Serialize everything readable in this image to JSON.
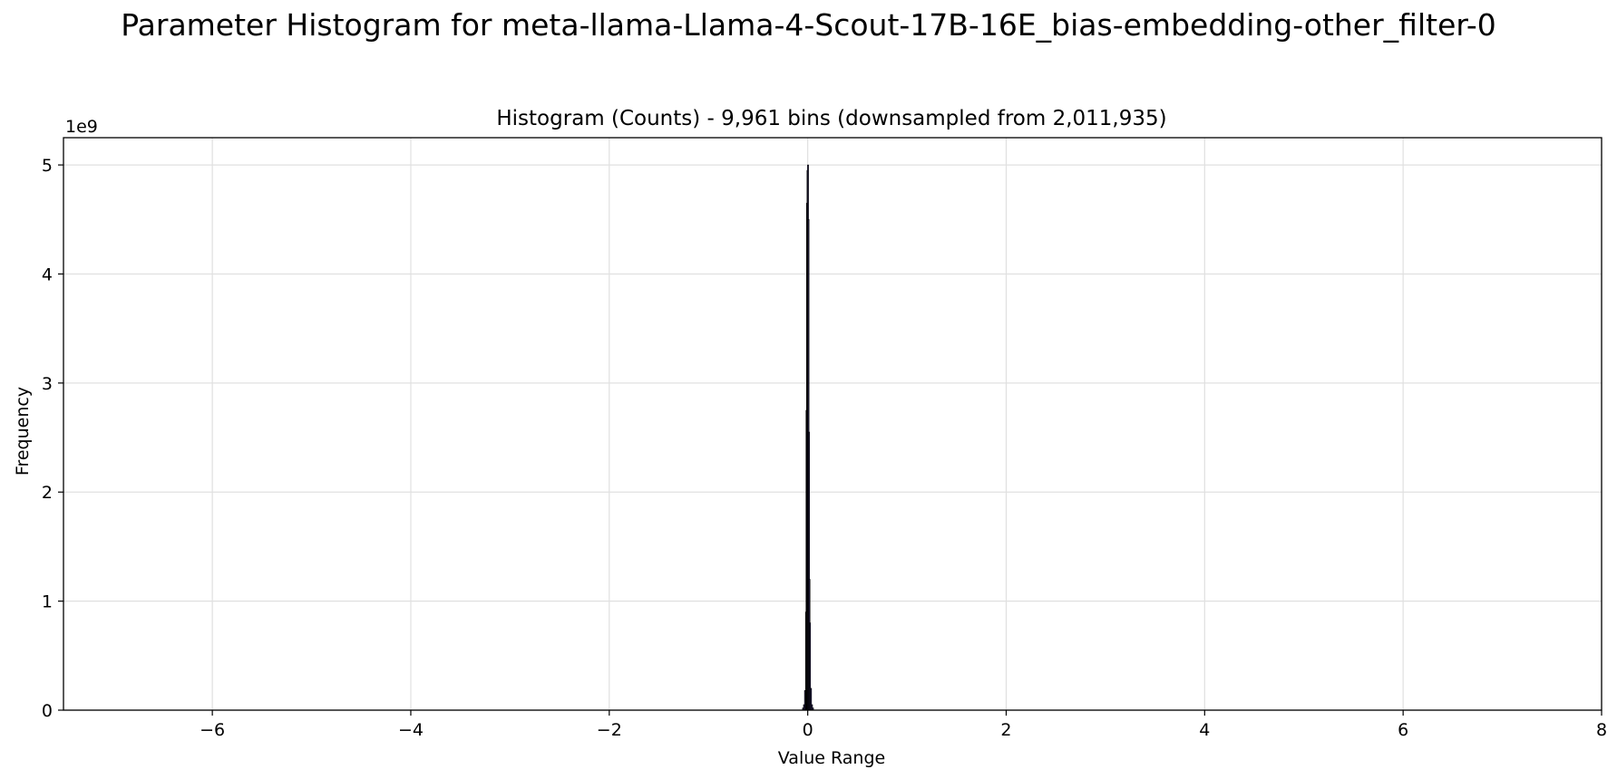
{
  "figure": {
    "suptitle": "Parameter Histogram for meta-llama-Llama-4-Scout-17B-16E_bias-embedding-other_filter-0"
  },
  "chart_data": {
    "type": "bar",
    "title": "Histogram (Counts) - 9,961 bins (downsampled from 2,011,935)",
    "xlabel": "Value Range",
    "ylabel": "Frequency",
    "y_offset_label": "1e9",
    "xlim": [
      -7.5,
      8.0
    ],
    "ylim": [
      0,
      5.25
    ],
    "y_unit": 1000000000,
    "x_ticks": [
      -6,
      -4,
      -2,
      0,
      2,
      4,
      6,
      8
    ],
    "x_tick_labels": [
      "−6",
      "−4",
      "−2",
      "0",
      "2",
      "4",
      "6",
      "8"
    ],
    "y_ticks": [
      0,
      1,
      2,
      3,
      4,
      5
    ],
    "y_tick_labels": [
      "0",
      "1",
      "2",
      "3",
      "4",
      "5"
    ],
    "grid": true,
    "bar_color": "#2a2450",
    "edge_color": "#000000",
    "bins": [
      {
        "x": -0.05,
        "value": 0.02
      },
      {
        "x": -0.04,
        "value": 0.05
      },
      {
        "x": -0.03,
        "value": 0.18
      },
      {
        "x": -0.02,
        "value": 0.9
      },
      {
        "x": -0.015,
        "value": 2.75
      },
      {
        "x": -0.01,
        "value": 4.65
      },
      {
        "x": -0.005,
        "value": 4.95
      },
      {
        "x": 0.0,
        "value": 5.0
      },
      {
        "x": 0.005,
        "value": 4.5
      },
      {
        "x": 0.01,
        "value": 2.55
      },
      {
        "x": 0.015,
        "value": 1.2
      },
      {
        "x": 0.02,
        "value": 0.8
      },
      {
        "x": 0.03,
        "value": 0.2
      },
      {
        "x": 0.04,
        "value": 0.05
      },
      {
        "x": 0.05,
        "value": 0.02
      }
    ]
  }
}
